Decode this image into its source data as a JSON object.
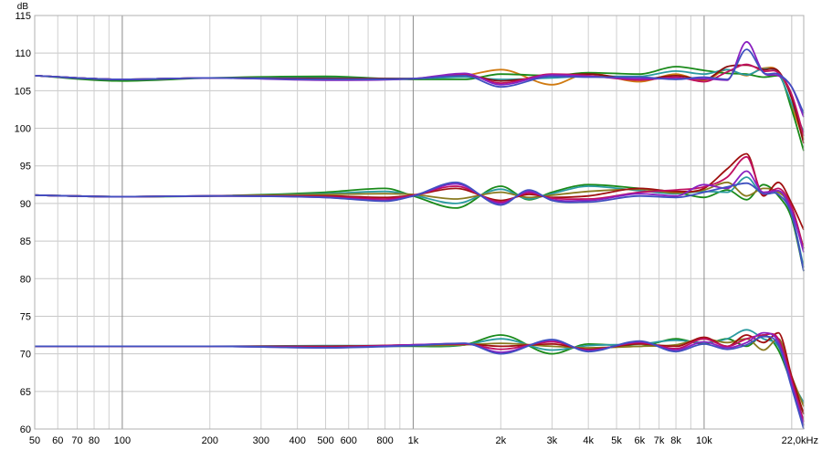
{
  "chart_data": {
    "type": "line",
    "x_scale": "log",
    "xlim": [
      50,
      22000
    ],
    "ylim": [
      60,
      115
    ],
    "ylabel": "dB",
    "xlabel": "",
    "x_last_tick_label": "22,0kHz",
    "x_ticks": [
      {
        "value": 50,
        "label": "50"
      },
      {
        "value": 60,
        "label": "60"
      },
      {
        "value": 70,
        "label": "70"
      },
      {
        "value": 80,
        "label": "80"
      },
      {
        "value": 100,
        "label": "100"
      },
      {
        "value": 200,
        "label": "200"
      },
      {
        "value": 300,
        "label": "300"
      },
      {
        "value": 400,
        "label": "400"
      },
      {
        "value": 500,
        "label": "500"
      },
      {
        "value": 600,
        "label": "600"
      },
      {
        "value": 800,
        "label": "800"
      },
      {
        "value": 1000,
        "label": "1k"
      },
      {
        "value": 2000,
        "label": "2k"
      },
      {
        "value": 3000,
        "label": "3k"
      },
      {
        "value": 4000,
        "label": "4k"
      },
      {
        "value": 5000,
        "label": "5k"
      },
      {
        "value": 6000,
        "label": "6k"
      },
      {
        "value": 7000,
        "label": "7k"
      },
      {
        "value": 8000,
        "label": "8k"
      },
      {
        "value": 10000,
        "label": "10k"
      }
    ],
    "y_ticks": [
      60,
      65,
      70,
      75,
      80,
      85,
      90,
      95,
      100,
      105,
      110,
      115
    ],
    "grid": true,
    "legend": "none",
    "series": [
      {
        "group": "top",
        "color": "#d07a10",
        "x": [
          50,
          100,
          200,
          500,
          1000,
          1500,
          2000,
          3000,
          4000,
          6000,
          8000,
          10000,
          12000,
          14000,
          16000,
          18000,
          20000,
          22000
        ],
        "y": [
          107,
          106.5,
          106.7,
          106.6,
          106.6,
          107.0,
          107.8,
          105.8,
          107.3,
          106.2,
          107.2,
          106.3,
          107.8,
          107.0,
          108.0,
          107.5,
          103.0,
          98.5
        ]
      },
      {
        "group": "top",
        "color": "#1a8a1a",
        "x": [
          50,
          100,
          200,
          500,
          1000,
          1500,
          2000,
          3000,
          4000,
          6000,
          8000,
          10000,
          12000,
          14000,
          16000,
          18000,
          20000,
          22000
        ],
        "y": [
          107,
          106.3,
          106.7,
          106.9,
          106.5,
          106.5,
          107.2,
          107.0,
          107.4,
          107.2,
          108.2,
          107.7,
          107.3,
          107.2,
          106.8,
          107.0,
          102.5,
          97.0
        ]
      },
      {
        "group": "top",
        "color": "#2a9aa0",
        "x": [
          50,
          100,
          200,
          500,
          1000,
          1500,
          2000,
          3000,
          4000,
          6000,
          8000,
          10000,
          12000,
          14000,
          16000,
          18000,
          20000,
          22000
        ],
        "y": [
          107,
          106.5,
          106.7,
          106.7,
          106.6,
          106.8,
          106.5,
          106.7,
          106.9,
          106.9,
          107.6,
          107.2,
          107.8,
          107.1,
          107.9,
          107.3,
          103.3,
          99.5
        ]
      },
      {
        "group": "top",
        "color": "#8a1010",
        "x": [
          50,
          100,
          200,
          500,
          1000,
          1500,
          2000,
          3000,
          4000,
          6000,
          8000,
          10000,
          12000,
          14000,
          16000,
          18000,
          20000,
          22000
        ],
        "y": [
          107,
          106.5,
          106.7,
          106.6,
          106.6,
          107.1,
          106.3,
          107.0,
          107.2,
          106.5,
          107.0,
          106.5,
          108.2,
          108.4,
          107.8,
          107.6,
          104.0,
          98.0
        ]
      },
      {
        "group": "top",
        "color": "#c01060",
        "x": [
          50,
          100,
          200,
          500,
          1000,
          1500,
          2000,
          3000,
          4000,
          6000,
          8000,
          10000,
          12000,
          14000,
          16000,
          18000,
          20000,
          22000
        ],
        "y": [
          107,
          106.5,
          106.7,
          106.5,
          106.6,
          107.2,
          106.0,
          107.2,
          107.0,
          106.4,
          106.8,
          106.2,
          107.5,
          108.5,
          107.6,
          107.4,
          104.5,
          99.0
        ]
      },
      {
        "group": "top",
        "color": "#8a20c0",
        "x": [
          50,
          100,
          200,
          500,
          1000,
          1500,
          2000,
          3000,
          4000,
          6000,
          8000,
          10000,
          12000,
          14000,
          16000,
          18000,
          20000,
          22000
        ],
        "y": [
          107,
          106.5,
          106.7,
          106.4,
          106.6,
          107.3,
          105.8,
          107.1,
          106.9,
          106.6,
          106.6,
          106.6,
          106.4,
          111.5,
          107.4,
          107.0,
          105.5,
          101.5
        ]
      },
      {
        "group": "top",
        "color": "#4050c0",
        "x": [
          50,
          100,
          200,
          500,
          1000,
          1500,
          2000,
          3000,
          4000,
          6000,
          8000,
          10000,
          12000,
          14000,
          16000,
          18000,
          20000,
          22000
        ],
        "y": [
          107,
          106.5,
          106.7,
          106.5,
          106.6,
          107.0,
          105.5,
          106.9,
          106.8,
          106.8,
          106.5,
          106.8,
          106.5,
          110.5,
          107.4,
          107.2,
          105.5,
          102.0
        ]
      },
      {
        "group": "middle",
        "color": "#1a8a1a",
        "x": [
          50,
          100,
          200,
          500,
          800,
          1000,
          1400,
          2000,
          2500,
          3000,
          4000,
          6000,
          8000,
          10000,
          12000,
          14000,
          16000,
          18000,
          20000,
          22000
        ],
        "y": [
          91.1,
          90.9,
          91.0,
          91.5,
          92.0,
          91.0,
          89.4,
          92.3,
          90.5,
          91.5,
          92.5,
          92.0,
          91.5,
          90.8,
          91.8,
          90.5,
          92.5,
          91.0,
          88.0,
          81.0
        ]
      },
      {
        "group": "middle",
        "color": "#2a9aa0",
        "x": [
          50,
          100,
          200,
          500,
          800,
          1000,
          1400,
          2000,
          2500,
          3000,
          4000,
          6000,
          8000,
          10000,
          12000,
          14000,
          16000,
          18000,
          20000,
          22000
        ],
        "y": [
          91.1,
          90.9,
          91.0,
          91.3,
          91.6,
          91.1,
          90.0,
          91.9,
          90.6,
          91.3,
          92.3,
          91.7,
          91.3,
          91.6,
          91.5,
          93.5,
          91.2,
          91.5,
          88.5,
          81.5
        ]
      },
      {
        "group": "middle",
        "color": "#8a7a20",
        "x": [
          50,
          100,
          200,
          500,
          800,
          1000,
          1400,
          2000,
          2500,
          3000,
          4000,
          6000,
          8000,
          10000,
          12000,
          14000,
          16000,
          18000,
          20000,
          22000
        ],
        "y": [
          91.1,
          90.9,
          91.0,
          91.2,
          91.3,
          91.2,
          90.6,
          91.5,
          90.8,
          91.1,
          91.6,
          91.9,
          91.4,
          91.8,
          92.8,
          91.0,
          92.0,
          91.5,
          89.5,
          84.0
        ]
      },
      {
        "group": "middle",
        "color": "#a01010",
        "x": [
          50,
          100,
          200,
          500,
          800,
          1000,
          1400,
          2000,
          2500,
          3000,
          4000,
          6000,
          8000,
          10000,
          12000,
          14000,
          16000,
          18000,
          20000,
          22000
        ],
        "y": [
          91.1,
          90.9,
          91.0,
          91.0,
          90.8,
          91.1,
          92.0,
          90.4,
          91.2,
          90.8,
          91.0,
          92.0,
          91.6,
          92.0,
          94.6,
          96.6,
          91.0,
          92.8,
          90.0,
          86.5
        ]
      },
      {
        "group": "middle",
        "color": "#c01060",
        "x": [
          50,
          100,
          200,
          500,
          800,
          1000,
          1400,
          2000,
          2500,
          3000,
          4000,
          6000,
          8000,
          10000,
          12000,
          14000,
          16000,
          18000,
          20000,
          22000
        ],
        "y": [
          91.1,
          90.9,
          91.0,
          90.9,
          90.6,
          91.1,
          92.3,
          90.2,
          91.4,
          90.7,
          90.6,
          91.5,
          91.8,
          92.2,
          93.5,
          96.2,
          91.2,
          92.0,
          89.5,
          84.0
        ]
      },
      {
        "group": "middle",
        "color": "#8a20c0",
        "x": [
          50,
          100,
          200,
          500,
          800,
          1000,
          1400,
          2000,
          2500,
          3000,
          4000,
          6000,
          8000,
          10000,
          12000,
          14000,
          16000,
          18000,
          20000,
          22000
        ],
        "y": [
          91.1,
          90.9,
          91.0,
          90.8,
          90.4,
          91.0,
          92.6,
          90.0,
          91.6,
          90.5,
          90.4,
          91.3,
          91.0,
          92.5,
          92.0,
          94.3,
          91.5,
          91.7,
          89.0,
          83.5
        ]
      },
      {
        "group": "middle",
        "color": "#4050c0",
        "x": [
          50,
          100,
          200,
          500,
          800,
          1000,
          1400,
          2000,
          2500,
          3000,
          4000,
          6000,
          8000,
          10000,
          12000,
          14000,
          16000,
          18000,
          20000,
          22000
        ],
        "y": [
          91.1,
          90.9,
          91.0,
          90.8,
          90.3,
          91.0,
          92.8,
          89.8,
          91.8,
          90.4,
          90.2,
          91.0,
          90.8,
          91.5,
          92.2,
          92.7,
          91.3,
          91.2,
          88.5,
          81.0
        ]
      },
      {
        "group": "bottom",
        "color": "#1a8a1a",
        "x": [
          50,
          100,
          200,
          500,
          1000,
          1500,
          2000,
          3000,
          4000,
          6000,
          8000,
          10000,
          12000,
          14000,
          16000,
          18000,
          20000,
          22000
        ],
        "y": [
          71,
          71.0,
          71.0,
          71.0,
          71.0,
          71.2,
          72.5,
          70.0,
          71.3,
          71.0,
          72.0,
          71.3,
          72.0,
          71.0,
          72.5,
          70.5,
          66.0,
          62.0
        ]
      },
      {
        "group": "bottom",
        "color": "#2a9aa0",
        "x": [
          50,
          100,
          200,
          500,
          1000,
          1500,
          2000,
          3000,
          4000,
          6000,
          8000,
          10000,
          12000,
          14000,
          16000,
          18000,
          20000,
          22000
        ],
        "y": [
          71,
          71.0,
          71.0,
          71.1,
          71.1,
          71.2,
          72.0,
          70.5,
          71.1,
          71.3,
          71.8,
          71.5,
          72.0,
          73.2,
          72.0,
          71.0,
          66.5,
          63.5
        ]
      },
      {
        "group": "bottom",
        "color": "#8a7a20",
        "x": [
          50,
          100,
          200,
          500,
          1000,
          1500,
          2000,
          3000,
          4000,
          6000,
          8000,
          10000,
          12000,
          14000,
          16000,
          18000,
          20000,
          22000
        ],
        "y": [
          71,
          71.0,
          71.0,
          71.0,
          71.1,
          71.2,
          71.4,
          71.0,
          70.8,
          71.0,
          71.2,
          72.0,
          71.5,
          72.0,
          70.5,
          72.0,
          67.0,
          63.0
        ]
      },
      {
        "group": "bottom",
        "color": "#a01010",
        "x": [
          50,
          100,
          200,
          500,
          1000,
          1500,
          2000,
          3000,
          4000,
          6000,
          8000,
          10000,
          12000,
          14000,
          16000,
          18000,
          20000,
          22000
        ],
        "y": [
          71,
          71.0,
          71.0,
          71.0,
          71.2,
          71.3,
          71.0,
          71.3,
          70.6,
          71.3,
          71.0,
          72.2,
          71.0,
          72.5,
          71.5,
          72.8,
          67.0,
          62.0
        ]
      },
      {
        "group": "bottom",
        "color": "#c01060",
        "x": [
          50,
          100,
          200,
          500,
          1000,
          1500,
          2000,
          3000,
          4000,
          6000,
          8000,
          10000,
          12000,
          14000,
          16000,
          18000,
          20000,
          22000
        ],
        "y": [
          71,
          71.0,
          71.0,
          70.9,
          71.2,
          71.3,
          70.6,
          71.6,
          70.5,
          71.5,
          70.7,
          72.0,
          71.0,
          72.0,
          72.5,
          72.0,
          66.5,
          61.0
        ]
      },
      {
        "group": "bottom",
        "color": "#8a20c0",
        "x": [
          50,
          100,
          200,
          500,
          1000,
          1500,
          2000,
          3000,
          4000,
          6000,
          8000,
          10000,
          12000,
          14000,
          16000,
          18000,
          20000,
          22000
        ],
        "y": [
          71,
          71.0,
          71.0,
          70.8,
          71.2,
          71.4,
          70.2,
          71.8,
          70.4,
          71.6,
          70.5,
          71.6,
          70.8,
          71.5,
          72.8,
          71.6,
          66.0,
          60.5
        ]
      },
      {
        "group": "bottom",
        "color": "#4050c0",
        "x": [
          50,
          100,
          200,
          500,
          1000,
          1500,
          2000,
          3000,
          4000,
          6000,
          8000,
          10000,
          12000,
          14000,
          16000,
          18000,
          20000,
          22000
        ],
        "y": [
          71,
          71.0,
          71.0,
          70.8,
          71.1,
          71.4,
          70.0,
          71.9,
          70.3,
          71.7,
          70.3,
          71.3,
          70.6,
          71.2,
          72.3,
          71.2,
          65.5,
          60.0
        ]
      }
    ]
  }
}
